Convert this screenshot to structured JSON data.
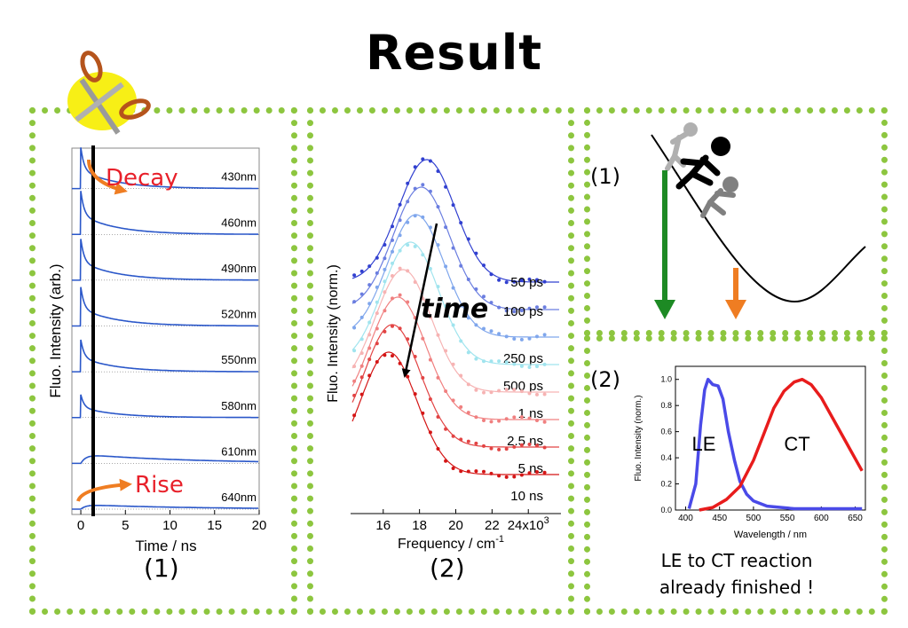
{
  "slide": {
    "title": "Result",
    "panel1_caption": "(1)",
    "panel2_caption": "(2)",
    "panel3_label1": "(1)",
    "panel3_label2": "(2)",
    "conclusion_line1": "LE to CT reaction",
    "conclusion_line2": "already finished !"
  },
  "colors": {
    "border": "#8dc63f",
    "decay_curves": "#2a57c9",
    "annotation_red": "#e8202a",
    "arrow_orange": "#ef7d22",
    "arrow_green": "#1d8a24",
    "le_curve": "#4a4ae8",
    "ct_curve": "#e81c1c",
    "scissors_circle": "#f7ef16"
  },
  "icons": [
    "scissors-icon",
    "stick-figure-icon"
  ],
  "chart_data": [
    {
      "type": "line",
      "id": "decay-traces",
      "xlabel": "Time / ns",
      "ylabel": "Fluo. Intensity (arb.)",
      "xlim": [
        -1,
        20
      ],
      "xticks": [
        0,
        5,
        10,
        15,
        20
      ],
      "vertical_line_x": 1.5,
      "annotations": {
        "decay": "Decay",
        "rise": "Rise"
      },
      "series": [
        {
          "name": "430nm",
          "kind": "decay",
          "peak": 0.9
        },
        {
          "name": "460nm",
          "kind": "decay",
          "peak": 0.95
        },
        {
          "name": "490nm",
          "kind": "decay",
          "peak": 0.9
        },
        {
          "name": "520nm",
          "kind": "decay",
          "peak": 0.85
        },
        {
          "name": "550nm",
          "kind": "decay",
          "peak": 0.7
        },
        {
          "name": "580nm",
          "kind": "decay",
          "peak": 0.5
        },
        {
          "name": "610nm",
          "kind": "rise",
          "peak": 0.2
        },
        {
          "name": "640nm",
          "kind": "rise",
          "peak": 0.1
        }
      ]
    },
    {
      "type": "line",
      "id": "time-resolved-spectra",
      "xlabel": "Frequency / cm",
      "xlabel_superscript": "-1",
      "ylabel": "Fluo. Intensity (norm.)",
      "xlim": [
        14200,
        25800
      ],
      "xticks": [
        16000,
        18000,
        20000,
        22000,
        24000
      ],
      "xtick_labels": [
        "16",
        "18",
        "20",
        "22",
        "24x10"
      ],
      "xtick_last_superscript": "3",
      "arrow_label": "time",
      "series": [
        {
          "name": "50 ps",
          "peak_x": 18400,
          "color": "#3140d0"
        },
        {
          "name": "100 ps",
          "peak_x": 18100,
          "color": "#6b7ee0"
        },
        {
          "name": "250 ps",
          "peak_x": 17800,
          "color": "#7fa6ec"
        },
        {
          "name": "500 ps",
          "peak_x": 17500,
          "color": "#a0e4ee"
        },
        {
          "name": "1 ns",
          "peak_x": 17100,
          "color": "#f6b3b3"
        },
        {
          "name": "2.5 ns",
          "peak_x": 16800,
          "color": "#f08080"
        },
        {
          "name": "5 ns",
          "peak_x": 16500,
          "color": "#e24444"
        },
        {
          "name": "10 ns",
          "peak_x": 16300,
          "color": "#d41515"
        }
      ]
    },
    {
      "type": "line",
      "id": "le-ct-spectra",
      "xlabel": "Wavelength / nm",
      "ylabel": "Fluo. Intensity (norm.)",
      "xlim": [
        385,
        665
      ],
      "ylim": [
        0.0,
        1.1
      ],
      "xticks": [
        400,
        450,
        500,
        550,
        600,
        650
      ],
      "yticks": [
        0.0,
        0.2,
        0.4,
        0.6,
        0.8,
        1.0
      ],
      "ytick_labels": [
        "0.0",
        "0.2",
        "0.4",
        "0.6",
        "0.8",
        "1.0"
      ],
      "series": [
        {
          "name": "LE",
          "color": "#4a4ae8",
          "points": [
            [
              405,
              0.01
            ],
            [
              415,
              0.2
            ],
            [
              422,
              0.65
            ],
            [
              428,
              0.92
            ],
            [
              433,
              1.0
            ],
            [
              440,
              0.96
            ],
            [
              448,
              0.95
            ],
            [
              455,
              0.85
            ],
            [
              463,
              0.6
            ],
            [
              472,
              0.38
            ],
            [
              480,
              0.22
            ],
            [
              490,
              0.12
            ],
            [
              500,
              0.07
            ],
            [
              520,
              0.03
            ],
            [
              560,
              0.01
            ],
            [
              600,
              0.01
            ],
            [
              660,
              0.01
            ]
          ]
        },
        {
          "name": "CT",
          "color": "#e81c1c",
          "points": [
            [
              420,
              0.0
            ],
            [
              440,
              0.02
            ],
            [
              460,
              0.08
            ],
            [
              480,
              0.18
            ],
            [
              500,
              0.38
            ],
            [
              515,
              0.58
            ],
            [
              530,
              0.78
            ],
            [
              545,
              0.91
            ],
            [
              560,
              0.98
            ],
            [
              572,
              1.0
            ],
            [
              585,
              0.96
            ],
            [
              600,
              0.86
            ],
            [
              615,
              0.72
            ],
            [
              630,
              0.58
            ],
            [
              645,
              0.44
            ],
            [
              660,
              0.3
            ]
          ]
        }
      ]
    }
  ]
}
